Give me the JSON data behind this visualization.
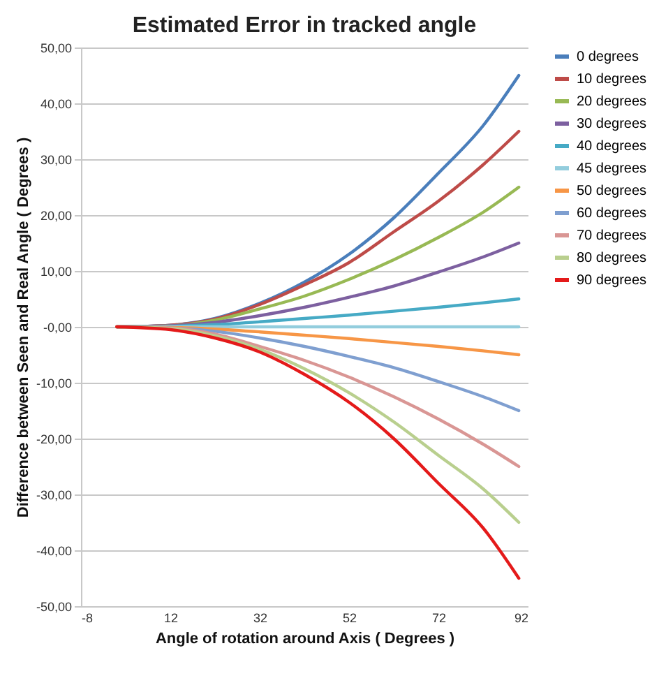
{
  "chart_data": {
    "type": "line",
    "title": "Estimated Error in tracked angle",
    "xlabel": "Angle of rotation around Axis ( Degrees )",
    "ylabel": "Difference between Seen and Real Angle ( Degrees )",
    "x": [
      0,
      12,
      22,
      32,
      42,
      52,
      62,
      72,
      82,
      90
    ],
    "xlim": [
      -8,
      92
    ],
    "xticks": [
      -8,
      12,
      32,
      52,
      72,
      92
    ],
    "ylim": [
      -50,
      50
    ],
    "yticks": [
      {
        "value": -50,
        "label": "-50,00"
      },
      {
        "value": -40,
        "label": "-40,00"
      },
      {
        "value": -30,
        "label": "-30,00"
      },
      {
        "value": -20,
        "label": "-20,00"
      },
      {
        "value": -10,
        "label": "-10,00"
      },
      {
        "value": 0,
        "label": "-0,00"
      },
      {
        "value": 10,
        "label": "10,00"
      },
      {
        "value": 20,
        "label": "20,00"
      },
      {
        "value": 30,
        "label": "30,00"
      },
      {
        "value": 40,
        "label": "40,00"
      },
      {
        "value": 50,
        "label": "50,00"
      }
    ],
    "grid": "y",
    "legend": "right",
    "marker": "none",
    "line_style": "solid",
    "series": [
      {
        "name": "0 degrees",
        "color": "#4a7ebb",
        "values": [
          0,
          0.3,
          1.5,
          4.2,
          8,
          13,
          19.5,
          27.5,
          36,
          45
        ]
      },
      {
        "name": "10 degrees",
        "color": "#be4b48",
        "values": [
          0,
          0.3,
          1.4,
          4,
          7.5,
          11.5,
          17,
          22.5,
          29,
          35
        ]
      },
      {
        "name": "20 degrees",
        "color": "#98b954",
        "values": [
          0,
          0.2,
          1.2,
          3.2,
          5.5,
          8.5,
          12,
          16,
          20.5,
          25
        ]
      },
      {
        "name": "30 degrees",
        "color": "#7d60a0",
        "values": [
          0,
          0.2,
          0.8,
          2,
          3.5,
          5.3,
          7.3,
          9.8,
          12.5,
          15
        ]
      },
      {
        "name": "40 degrees",
        "color": "#46aac5",
        "values": [
          0,
          0.1,
          0.4,
          0.9,
          1.5,
          2.1,
          2.8,
          3.5,
          4.3,
          5
        ]
      },
      {
        "name": "45 degrees",
        "color": "#93cddd",
        "values": [
          0,
          0,
          0,
          0,
          0,
          0,
          0,
          0,
          0,
          0
        ]
      },
      {
        "name": "50 degrees",
        "color": "#f79646",
        "values": [
          0,
          -0.1,
          -0.4,
          -0.9,
          -1.5,
          -2.1,
          -2.8,
          -3.5,
          -4.3,
          -5
        ]
      },
      {
        "name": "60 degrees",
        "color": "#7f9fd0",
        "values": [
          0,
          -0.2,
          -0.8,
          -2,
          -3.5,
          -5.3,
          -7.3,
          -9.8,
          -12.5,
          -15
        ]
      },
      {
        "name": "70 degrees",
        "color": "#d99694",
        "values": [
          0,
          -0.2,
          -1.3,
          -3.5,
          -6,
          -9,
          -12.5,
          -16.5,
          -21,
          -25
        ]
      },
      {
        "name": "80 degrees",
        "color": "#b9cf8e",
        "values": [
          0,
          -0.3,
          -1.6,
          -4,
          -7.5,
          -11.8,
          -17,
          -23,
          -29,
          -35
        ]
      },
      {
        "name": "90 degrees",
        "color": "#e41a1a",
        "values": [
          0,
          -0.5,
          -2,
          -4.5,
          -8.5,
          -13.5,
          -20,
          -28,
          -36,
          -45
        ]
      }
    ]
  }
}
